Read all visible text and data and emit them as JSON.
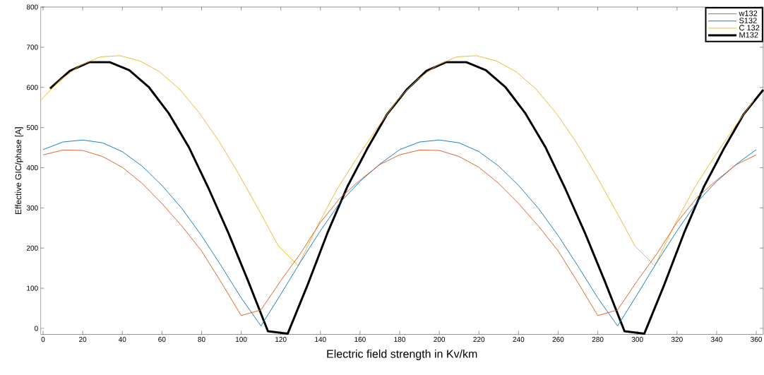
{
  "chart_data": {
    "type": "line",
    "xlabel": "Electric field strength in Kv/km",
    "ylabel": "Effective GIC/phase [A]",
    "x": [
      0,
      10,
      20,
      30,
      40,
      50,
      60,
      70,
      80,
      90,
      100,
      110,
      120,
      130,
      140,
      150,
      160,
      170,
      180,
      190,
      200,
      210,
      220,
      230,
      240,
      250,
      260,
      270,
      280,
      290,
      300,
      310,
      320,
      330,
      340,
      350,
      360
    ],
    "xlim": [
      -1.2,
      363.5
    ],
    "ylim": [
      -15,
      800
    ],
    "xticks": [
      0,
      20,
      40,
      60,
      80,
      100,
      120,
      140,
      160,
      180,
      200,
      220,
      240,
      260,
      280,
      300,
      320,
      340,
      360
    ],
    "yticks": [
      0,
      100,
      200,
      300,
      400,
      500,
      600,
      700,
      800
    ],
    "grid": false,
    "legend": "top right",
    "series": [
      {
        "name": "w132",
        "color": "#d95319",
        "values": [
          432,
          444,
          443,
          428,
          401,
          361,
          311,
          255,
          193,
          114,
          32,
          46,
          119,
          187,
          264,
          325,
          369,
          408,
          432,
          444,
          443,
          428,
          401,
          361,
          311,
          255,
          193,
          114,
          32,
          46,
          119,
          187,
          264,
          325,
          369,
          408,
          432
        ]
      },
      {
        "name": "S132",
        "color": "#0072bd",
        "values": [
          445,
          464,
          469,
          462,
          440,
          404,
          356,
          299,
          231,
          155,
          76,
          6,
          85,
          166,
          243,
          314,
          366,
          409,
          445,
          464,
          469,
          462,
          440,
          404,
          356,
          299,
          231,
          155,
          76,
          6,
          85,
          166,
          243,
          314,
          366,
          409,
          445
        ]
      },
      {
        "name": "C 132",
        "color": "#edb120",
        "x": [
          -1.2,
          8.8,
          18.8,
          28.8,
          38.8,
          48.8,
          58.8,
          68.8,
          78.8,
          88.8,
          98.8,
          108.8,
          118.8,
          128.8,
          138.8,
          148.8,
          158.8,
          168.8,
          178.8,
          188.8,
          198.8,
          208.8,
          218.8,
          228.8,
          238.8,
          248.8,
          258.8,
          268.8,
          278.8,
          288.8,
          298.8,
          308.8,
          318.8,
          328.8,
          338.8,
          348.8,
          358.8
        ],
        "values": [
          568,
          619,
          655,
          676,
          679,
          666,
          639,
          596,
          537,
          466,
          384,
          296,
          205,
          156,
          258,
          350,
          427,
          500,
          568,
          619,
          655,
          676,
          679,
          666,
          639,
          596,
          537,
          466,
          384,
          296,
          205,
          156,
          258,
          350,
          427,
          500,
          568
        ]
      },
      {
        "name": "M132",
        "color": "#000000",
        "x": [
          3.5,
          13.5,
          23.5,
          33.5,
          43.5,
          53.5,
          63.5,
          73.5,
          83.5,
          93.5,
          103.5,
          113.5,
          123.5,
          133.5,
          143.5,
          153.5,
          163.5,
          173.5,
          183.5,
          193.5,
          203.5,
          213.5,
          223.5,
          233.5,
          243.5,
          253.5,
          263.5,
          273.5,
          283.5,
          293.5,
          303.5,
          313.5,
          323.5,
          333.5,
          343.5,
          353.5,
          363.5
        ],
        "values": [
          597,
          641,
          663,
          663,
          643,
          600,
          535,
          452,
          349,
          238,
          118,
          -7,
          -13,
          108,
          237,
          352,
          446,
          532,
          594,
          641,
          663,
          663,
          643,
          600,
          535,
          452,
          349,
          238,
          118,
          -7,
          -13,
          108,
          237,
          352,
          446,
          532,
          594
        ]
      }
    ]
  }
}
